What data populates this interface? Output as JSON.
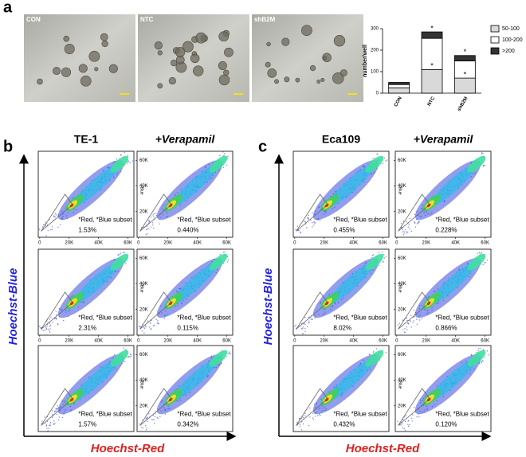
{
  "panel_labels": [
    "a",
    "b",
    "c"
  ],
  "images": [
    "CON",
    "NTC",
    "shB2M"
  ],
  "chart_data": {
    "type": "bar",
    "stacked": true,
    "y_label": "number/well",
    "categories": [
      "CON",
      "NTC",
      "shB2M"
    ],
    "series": [
      {
        "name": "50-100",
        "color": "#d9d9d9",
        "values": [
          25,
          110,
          70
        ]
      },
      {
        "name": "100-200",
        "color": "#ffffff",
        "values": [
          15,
          145,
          80
        ]
      },
      {
        "name": ">200",
        "color": "#333333",
        "values": [
          10,
          30,
          25
        ]
      }
    ],
    "annotations": [
      "*",
      "*",
      "*",
      "*"
    ],
    "ylim": [
      0,
      300
    ],
    "yticks": [
      0,
      100,
      200,
      300
    ],
    "legend": "right"
  },
  "flow": {
    "axis_x": "Hoechst-Red",
    "axis_y": "Hoechst-Blue",
    "gate_label": "*Red, *Blue subset",
    "y_label": "*Blue",
    "xlim": [
      -1000,
      64000
    ],
    "ylim": [
      0,
      67000
    ],
    "xticks": [
      0,
      {
        "value": 20000,
        "label": "20K"
      },
      {
        "value": 40000,
        "label": "40K"
      },
      {
        "value": 60000,
        "label": "60K"
      }
    ],
    "yticks": [
      {
        "value": 20000,
        "label": "20K"
      },
      {
        "value": 40000,
        "label": "40K"
      },
      {
        "value": 60000,
        "label": "60K"
      }
    ],
    "panels": [
      {
        "columns": [
          "TE-1",
          "+Verapamil"
        ],
        "percentages": [
          [
            "1.53%",
            "0.440%"
          ],
          [
            "2.31%",
            "0.115%"
          ],
          [
            "1.57%",
            "0.342%"
          ]
        ]
      },
      {
        "columns": [
          "Eca109",
          "+Verapamil"
        ],
        "percentages": [
          [
            "0.455%",
            "0.228%"
          ],
          [
            "8.02%",
            "0.866%"
          ],
          [
            "0.432%",
            "0.120%"
          ]
        ]
      }
    ]
  }
}
